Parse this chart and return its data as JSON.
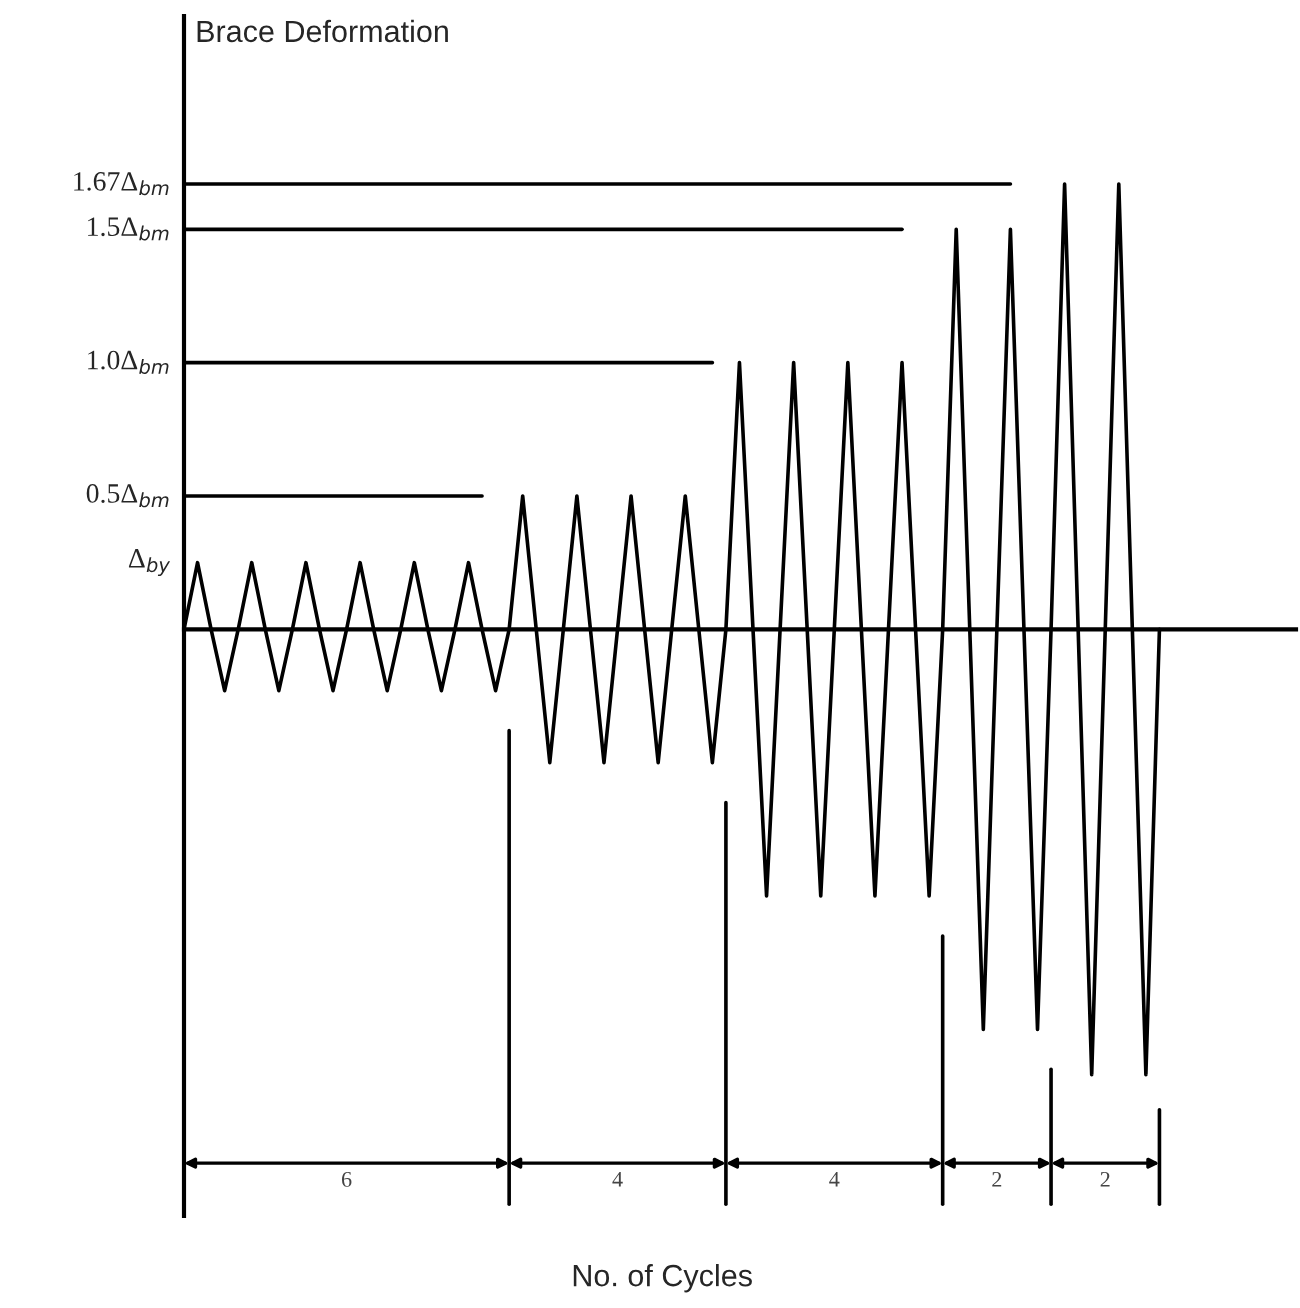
{
  "chart_data": {
    "type": "line",
    "xlabel": "No. of Cycles",
    "ylabel": "Brace Deformation",
    "ylim": [
      -2.2,
      2.3
    ],
    "tick_labels": "y",
    "grid": false,
    "legend": false,
    "yticks": [
      {
        "value": 0.25,
        "label": "Δ$_{by}$"
      },
      {
        "value": 0.5,
        "label": "0.5Δ$_{bm}$"
      },
      {
        "value": 1.0,
        "label": "1.0Δ$_{bm}$"
      },
      {
        "value": 1.5,
        "label": "1.5Δ$_{bm}$"
      },
      {
        "value": 1.67,
        "label": "1.67Δ$_{bm}$"
      }
    ],
    "categories": [
      null,
      null,
      null,
      null,
      null,
      null,
      null,
      null,
      null,
      null,
      null,
      null,
      null,
      null,
      null,
      null,
      null,
      null,
      null,
      null,
      null,
      null,
      null,
      null,
      null,
      null,
      null,
      null,
      null,
      null,
      null,
      null,
      null,
      null,
      null,
      null,
      null,
      null,
      null,
      null,
      null,
      null,
      null,
      null,
      null,
      null,
      null,
      null,
      null,
      null,
      null,
      null,
      null,
      null,
      null,
      null,
      null,
      null,
      null,
      null,
      null,
      null,
      null,
      null,
      null,
      null,
      null,
      null,
      null,
      null,
      null,
      null,
      null
    ],
    "series": [
      {
        "color": "#000000",
        "values": [
          0,
          0.25,
          0,
          -0.23,
          0,
          0.25,
          0,
          -0.23,
          0,
          0.25,
          0,
          -0.23,
          0,
          0.25,
          0,
          -0.23,
          0,
          0.25,
          0,
          -0.23,
          0,
          0.25,
          0,
          -0.23,
          0,
          0.5,
          0,
          -0.5,
          0,
          0.5,
          0,
          -0.5,
          0,
          0.5,
          0,
          -0.5,
          0,
          0.5,
          0,
          -0.5,
          0,
          1.0,
          0,
          -1.0,
          0,
          1.0,
          0,
          -1.0,
          0,
          1.0,
          0,
          -1.0,
          0,
          1.0,
          0,
          -1.0,
          0,
          1.5,
          0,
          -1.5,
          0,
          1.5,
          0,
          -1.5,
          0,
          1.67,
          0,
          -1.67,
          0,
          1.67,
          0,
          -1.67,
          0
        ]
      },
      {
        "color": "#000000",
        "values": [
          0.5,
          0.5,
          0.5,
          0.5,
          0.5,
          0.5,
          0.5,
          0.5,
          0.5,
          0.5,
          0.5,
          0.5,
          0.5,
          0.5,
          0.5,
          0.5,
          0.5,
          0.5,
          0.5,
          0.5,
          0.5,
          0.5,
          0.5,
          null,
          null,
          null,
          null,
          null,
          null,
          null,
          null,
          null,
          null,
          null,
          null,
          null,
          null,
          null,
          null,
          null,
          null,
          null,
          null,
          null,
          null,
          null,
          null,
          null,
          null,
          null,
          null,
          null,
          null,
          null,
          null,
          null,
          null,
          null,
          null,
          null,
          null,
          null,
          null,
          null,
          null,
          null,
          null,
          null,
          null,
          null,
          null,
          null,
          null
        ]
      },
      {
        "color": "#000000",
        "values": [
          1.0,
          1.0,
          1.0,
          1.0,
          1.0,
          1.0,
          1.0,
          1.0,
          1.0,
          1.0,
          1.0,
          1.0,
          1.0,
          1.0,
          1.0,
          1.0,
          1.0,
          1.0,
          1.0,
          1.0,
          1.0,
          1.0,
          1.0,
          1.0,
          1.0,
          1.0,
          1.0,
          1.0,
          1.0,
          1.0,
          1.0,
          1.0,
          1.0,
          1.0,
          1.0,
          1.0,
          1.0,
          1.0,
          1.0,
          1.0,
          null,
          null,
          null,
          null,
          null,
          null,
          null,
          null,
          null,
          null,
          null,
          null,
          null,
          null,
          null,
          null,
          null,
          null,
          null,
          null,
          null,
          null,
          null,
          null,
          null,
          null,
          null,
          null,
          null,
          null,
          null,
          null,
          null
        ]
      },
      {
        "color": "#000000",
        "values": [
          1.5,
          1.5,
          1.5,
          1.5,
          1.5,
          1.5,
          1.5,
          1.5,
          1.5,
          1.5,
          1.5,
          1.5,
          1.5,
          1.5,
          1.5,
          1.5,
          1.5,
          1.5,
          1.5,
          1.5,
          1.5,
          1.5,
          1.5,
          1.5,
          1.5,
          1.5,
          1.5,
          1.5,
          1.5,
          1.5,
          1.5,
          1.5,
          1.5,
          1.5,
          1.5,
          1.5,
          1.5,
          1.5,
          1.5,
          1.5,
          1.5,
          1.5,
          1.5,
          1.5,
          1.5,
          1.5,
          1.5,
          1.5,
          1.5,
          1.5,
          1.5,
          1.5,
          1.5,
          1.5,
          null,
          null,
          null,
          null,
          null,
          null,
          null,
          null,
          null,
          null,
          null,
          null,
          null,
          null,
          null,
          null,
          null,
          null,
          null
        ]
      },
      {
        "color": "#000000",
        "values": [
          1.67,
          1.67,
          1.67,
          1.67,
          1.67,
          1.67,
          1.67,
          1.67,
          1.67,
          1.67,
          1.67,
          1.67,
          1.67,
          1.67,
          1.67,
          1.67,
          1.67,
          1.67,
          1.67,
          1.67,
          1.67,
          1.67,
          1.67,
          1.67,
          1.67,
          1.67,
          1.67,
          1.67,
          1.67,
          1.67,
          1.67,
          1.67,
          1.67,
          1.67,
          1.67,
          1.67,
          1.67,
          1.67,
          1.67,
          1.67,
          1.67,
          1.67,
          1.67,
          1.67,
          1.67,
          1.67,
          1.67,
          1.67,
          1.67,
          1.67,
          1.67,
          1.67,
          1.67,
          1.67,
          1.67,
          1.67,
          1.67,
          1.67,
          1.67,
          1.67,
          1.67,
          1.67,
          null,
          null,
          null,
          null,
          null,
          null,
          null,
          null,
          null,
          null,
          null
        ]
      }
    ],
    "annotations": [
      "6",
      "4",
      "4",
      "2",
      "2"
    ]
  }
}
